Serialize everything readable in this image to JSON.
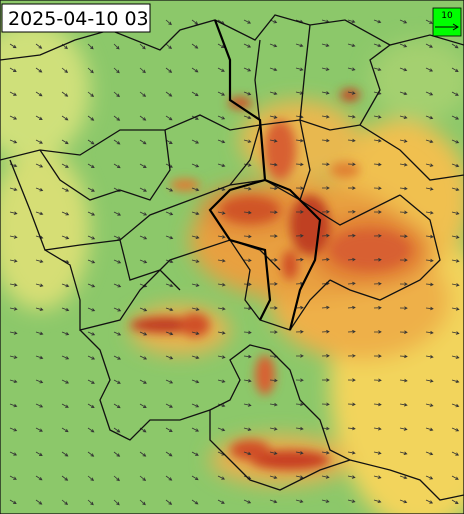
{
  "map": {
    "timestamp": "2025-04-10 03",
    "legend": {
      "label": "10"
    }
  }
}
